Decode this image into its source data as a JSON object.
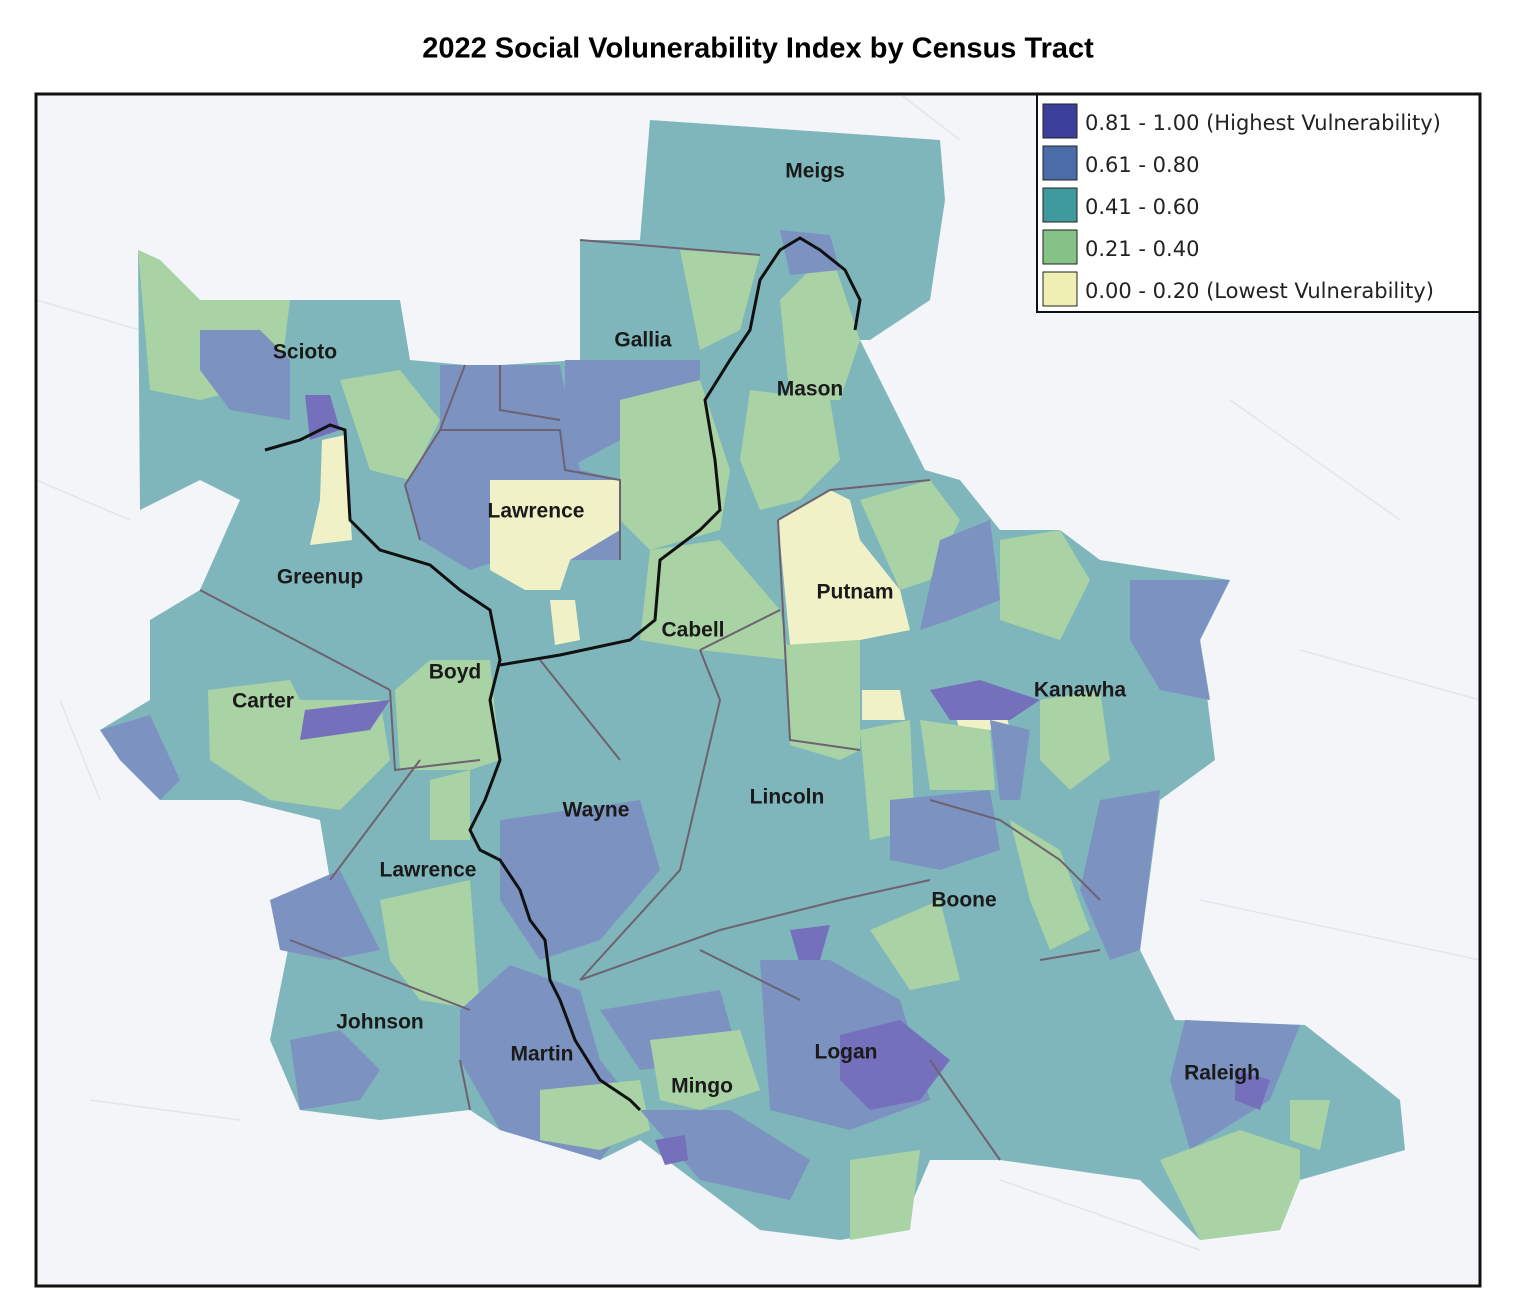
{
  "title": "2022 Social Volunerability Index by Census Tract",
  "legend": [
    {
      "label": "0.81 - 1.00 (Highest Vulnerability)",
      "color": "#3b3f99"
    },
    {
      "label": "0.61 - 0.80",
      "color": "#4c6ca9"
    },
    {
      "label": "0.41 - 0.60",
      "color": "#3f9a9d"
    },
    {
      "label": "0.21 - 0.40",
      "color": "#84c285"
    },
    {
      "label": "0.00 - 0.20 (Lowest Vulnerability)",
      "color": "#efefb4"
    }
  ],
  "counties": [
    "Meigs",
    "Scioto",
    "Gallia",
    "Mason",
    "Lawrence",
    "Putnam",
    "Greenup",
    "Cabell",
    "Boyd",
    "Kanawha",
    "Carter",
    "Lincoln",
    "Wayne",
    "Lawrence",
    "Boone",
    "Johnson",
    "Martin",
    "Logan",
    "Mingo",
    "Raleigh"
  ]
}
